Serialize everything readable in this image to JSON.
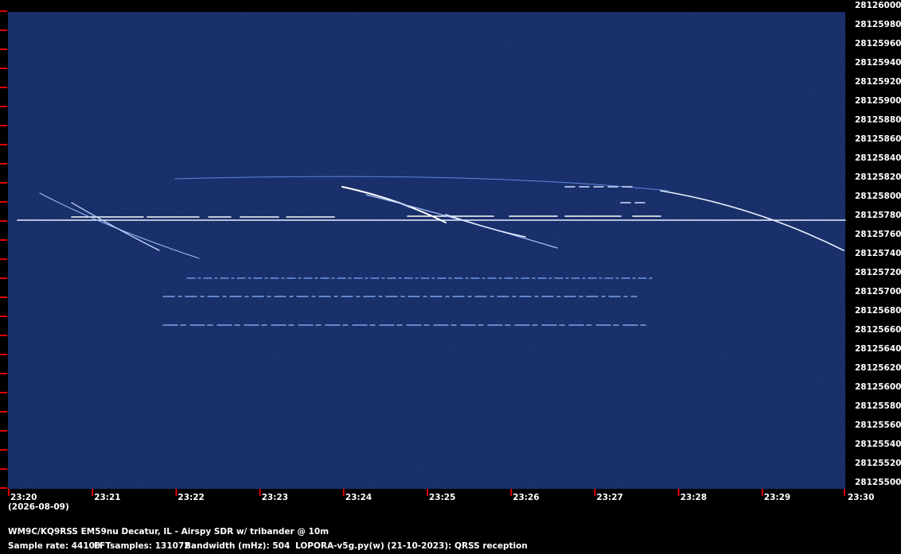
{
  "chart_data": {
    "type": "spectrogram",
    "ylim": [
      28125500,
      28126000
    ],
    "yticks": [
      28125500,
      28125520,
      28125540,
      28125560,
      28125580,
      28125600,
      28125620,
      28125640,
      28125660,
      28125680,
      28125700,
      28125720,
      28125740,
      28125760,
      28125780,
      28125800,
      28125820,
      28125840,
      28125860,
      28125880,
      28125900,
      28125920,
      28125940,
      28125960,
      28125980,
      28126000
    ],
    "categories": [
      "23:20",
      "23:21",
      "23:22",
      "23:23",
      "23:24",
      "23:25",
      "23:26",
      "23:27",
      "23:28",
      "23:29",
      "23:30"
    ],
    "date": "(2026-08-09)",
    "footer": {
      "station": "WM9C/KQ9RSS EM59nu Decatur, IL - Airspy SDR w/ tribander @ 10m",
      "sample_rate": "Sample rate: 44100",
      "fft_samples": "FFTsamples: 131072",
      "bandwidth": "Bandwidth (mHz): 504",
      "software": "LOPORA-v5g.py(w) (21-10-2023): QRSS reception"
    },
    "background_color": "#0c1d57",
    "tick_color": "#e00000"
  }
}
